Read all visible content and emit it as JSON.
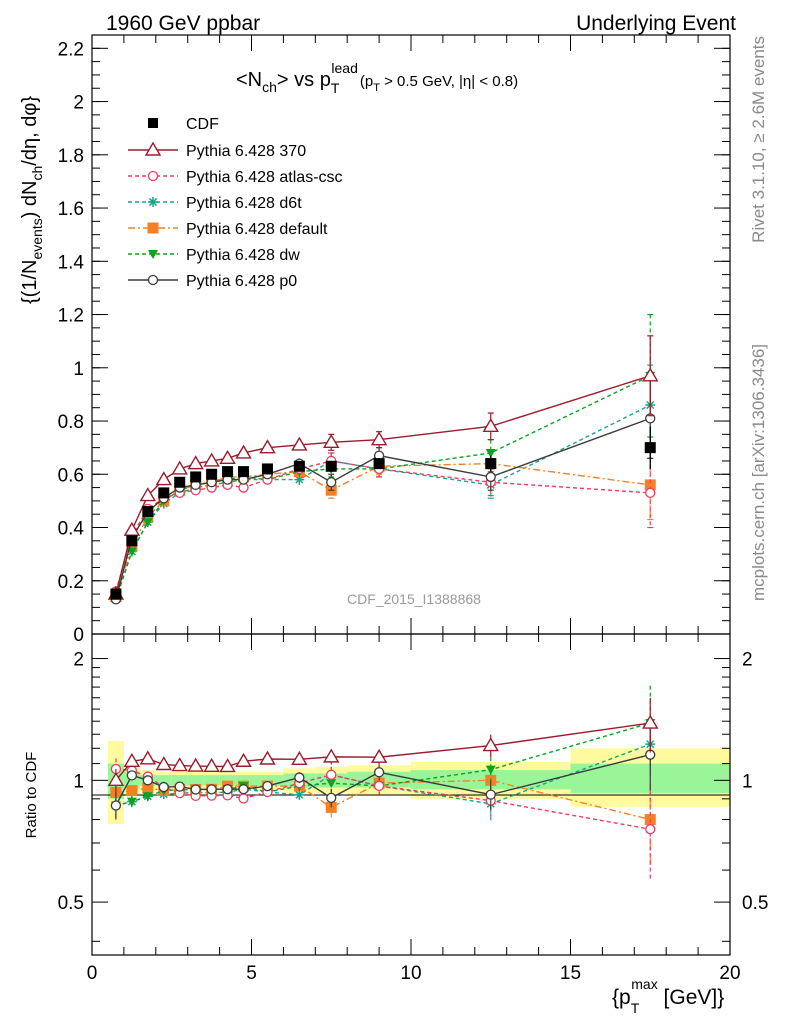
{
  "header": {
    "left": "1960 GeV ppbar",
    "right": "Underlying Event"
  },
  "side_labels": {
    "rivet": "Rivet 3.1.10, ≥ 2.6M events",
    "mcplots": "mcplots.cern.ch [arXiv:1306.3436]"
  },
  "chart_data": {
    "type": "line",
    "title": "<N_ch> vs p_T^lead (p_T > 0.5 GeV, |η| < 0.8)",
    "title_parts": {
      "a": "<N",
      "a_sub": "ch",
      "b": "> vs p",
      "b_sub": "T",
      "b_sup": "lead",
      "c": "(p",
      "c_sub": "T",
      "d": " > 0.5 GeV, |η| < 0.8)"
    },
    "watermark": "CDF_2015_I1388868",
    "ylabel": "{(1/N_events) dN_ch/dη, dφ}",
    "ylabel_parts": {
      "a": "{(1/N",
      "a_sub": "events",
      "b": ") dN",
      "b_sub": "ch",
      "c": "/dη, dφ}"
    },
    "xlabel": "{p_T^max [GeV]}",
    "xlabel_parts": {
      "a": "{p",
      "a_sub": "T",
      "a_sup": "max",
      "b": " [GeV]}"
    },
    "ratio_ylabel": "Ratio to CDF",
    "xlim": [
      0,
      20
    ],
    "ylim": [
      0,
      2.25
    ],
    "ratio_ylim": [
      0.37,
      2.3
    ],
    "x_ticks": [
      "0",
      "5",
      "10",
      "15",
      "20"
    ],
    "y_ticks": [
      "0",
      "0.2",
      "0.4",
      "0.6",
      "0.8",
      "1",
      "1.2",
      "1.4",
      "1.6",
      "1.8",
      "2",
      "2.2"
    ],
    "ratio_ticks": [
      "0.5",
      "1",
      "2"
    ],
    "legend_position": "top-left",
    "x": [
      0.75,
      1.25,
      1.75,
      2.25,
      2.75,
      3.25,
      3.75,
      4.25,
      4.75,
      5.5,
      6.5,
      7.5,
      9.0,
      12.5,
      17.5
    ],
    "data": {
      "name": "CDF",
      "values": [
        0.15,
        0.35,
        0.46,
        0.53,
        0.57,
        0.59,
        0.6,
        0.61,
        0.61,
        0.62,
        0.63,
        0.63,
        0.64,
        0.64,
        0.7
      ],
      "errors": [
        0.01,
        0.01,
        0.01,
        0.01,
        0.01,
        0.01,
        0.01,
        0.01,
        0.01,
        0.01,
        0.01,
        0.02,
        0.02,
        0.03,
        0.08
      ]
    },
    "series": [
      {
        "name": "Pythia 6.428 370",
        "color": "#9b1b2c",
        "marker": "triangle-open",
        "dash": "",
        "values": [
          0.15,
          0.39,
          0.52,
          0.58,
          0.62,
          0.64,
          0.65,
          0.66,
          0.68,
          0.7,
          0.71,
          0.72,
          0.73,
          0.78,
          0.97
        ],
        "errors": [
          0.01,
          0.01,
          0.01,
          0.01,
          0.01,
          0.01,
          0.01,
          0.01,
          0.01,
          0.015,
          0.02,
          0.03,
          0.03,
          0.05,
          0.15
        ]
      },
      {
        "name": "Pythia 6.428 atlas-csc",
        "color": "#ee3b63",
        "marker": "circle-open",
        "dash": "4,3",
        "values": [
          0.16,
          0.37,
          0.47,
          0.51,
          0.53,
          0.54,
          0.55,
          0.56,
          0.55,
          0.58,
          0.62,
          0.65,
          0.62,
          0.57,
          0.53
        ],
        "errors": [
          0.01,
          0.01,
          0.01,
          0.01,
          0.01,
          0.01,
          0.01,
          0.01,
          0.01,
          0.015,
          0.02,
          0.03,
          0.03,
          0.05,
          0.13
        ]
      },
      {
        "name": "Pythia 6.428 d6t",
        "color": "#17a589",
        "marker": "star",
        "dash": "4,3",
        "values": [
          0.13,
          0.31,
          0.42,
          0.49,
          0.53,
          0.55,
          0.56,
          0.57,
          0.58,
          0.58,
          0.58,
          0.65,
          0.62,
          0.56,
          0.86
        ],
        "errors": [
          0.01,
          0.01,
          0.01,
          0.01,
          0.01,
          0.01,
          0.01,
          0.01,
          0.01,
          0.015,
          0.02,
          0.03,
          0.03,
          0.05,
          0.15
        ]
      },
      {
        "name": "Pythia 6.428 default",
        "color": "#f58025",
        "marker": "square",
        "dash": "7,3,2,3",
        "values": [
          0.14,
          0.33,
          0.44,
          0.5,
          0.54,
          0.56,
          0.57,
          0.59,
          0.59,
          0.6,
          0.61,
          0.54,
          0.63,
          0.64,
          0.56
        ],
        "errors": [
          0.01,
          0.01,
          0.01,
          0.01,
          0.01,
          0.01,
          0.01,
          0.01,
          0.01,
          0.015,
          0.02,
          0.03,
          0.03,
          0.05,
          0.13
        ]
      },
      {
        "name": "Pythia 6.428 dw",
        "color": "#0aa31f",
        "marker": "triangle-down",
        "dash": "4,3",
        "values": [
          0.13,
          0.31,
          0.42,
          0.5,
          0.54,
          0.56,
          0.57,
          0.58,
          0.59,
          0.58,
          0.61,
          0.62,
          0.62,
          0.68,
          0.97
        ],
        "errors": [
          0.01,
          0.01,
          0.01,
          0.01,
          0.01,
          0.01,
          0.01,
          0.01,
          0.01,
          0.015,
          0.02,
          0.03,
          0.03,
          0.05,
          0.23
        ]
      },
      {
        "name": "Pythia 6.428 p0",
        "color": "#3c3c3c",
        "marker": "circle-open",
        "dash": "",
        "values": [
          0.13,
          0.36,
          0.46,
          0.51,
          0.55,
          0.56,
          0.57,
          0.58,
          0.58,
          0.6,
          0.64,
          0.57,
          0.67,
          0.59,
          0.81
        ],
        "errors": [
          0.01,
          0.01,
          0.01,
          0.01,
          0.01,
          0.01,
          0.01,
          0.01,
          0.01,
          0.015,
          0.02,
          0.03,
          0.03,
          0.05,
          0.15
        ]
      }
    ],
    "ratio_band": {
      "x_edges": [
        0.5,
        1.0,
        1.5,
        2.0,
        2.5,
        3.0,
        3.5,
        4.0,
        4.5,
        5.0,
        6.0,
        7.0,
        8.0,
        10.0,
        15.0,
        20.0
      ],
      "inner_lo": [
        0.9,
        0.95,
        0.97,
        0.97,
        0.97,
        0.97,
        0.97,
        0.97,
        0.97,
        0.97,
        0.96,
        0.96,
        0.96,
        0.95,
        0.93
      ],
      "inner_hi": [
        1.1,
        1.05,
        1.03,
        1.03,
        1.03,
        1.03,
        1.03,
        1.03,
        1.03,
        1.03,
        1.04,
        1.04,
        1.05,
        1.06,
        1.1
      ],
      "outer_lo": [
        0.78,
        0.92,
        0.94,
        0.95,
        0.95,
        0.95,
        0.95,
        0.95,
        0.95,
        0.95,
        0.93,
        0.93,
        0.92,
        0.9,
        0.86
      ],
      "outer_hi": [
        1.25,
        1.09,
        1.06,
        1.05,
        1.05,
        1.05,
        1.05,
        1.05,
        1.05,
        1.05,
        1.07,
        1.08,
        1.09,
        1.11,
        1.2
      ]
    }
  }
}
